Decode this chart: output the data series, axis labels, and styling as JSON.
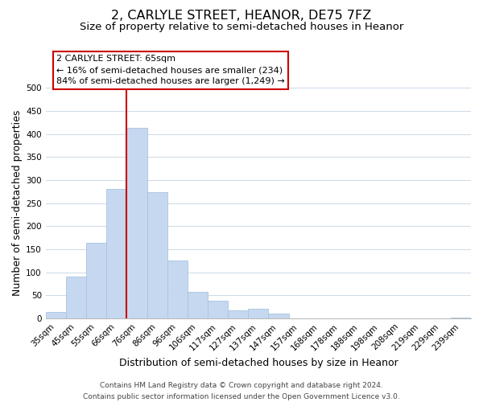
{
  "title": "2, CARLYLE STREET, HEANOR, DE75 7FZ",
  "subtitle": "Size of property relative to semi-detached houses in Heanor",
  "xlabel": "Distribution of semi-detached houses by size in Heanor",
  "ylabel": "Number of semi-detached properties",
  "bar_labels": [
    "35sqm",
    "45sqm",
    "55sqm",
    "66sqm",
    "76sqm",
    "86sqm",
    "96sqm",
    "106sqm",
    "117sqm",
    "127sqm",
    "137sqm",
    "147sqm",
    "157sqm",
    "168sqm",
    "178sqm",
    "188sqm",
    "198sqm",
    "208sqm",
    "219sqm",
    "229sqm",
    "239sqm"
  ],
  "bar_values": [
    13,
    90,
    163,
    280,
    413,
    273,
    126,
    57,
    38,
    18,
    20,
    11,
    0,
    0,
    0,
    0,
    0,
    0,
    0,
    0,
    2
  ],
  "bar_color": "#c5d8f0",
  "bar_edge_color": "#a8c4e0",
  "vline_x": 3.5,
  "vline_color": "#cc0000",
  "annotation_title": "2 CARLYLE STREET: 65sqm",
  "annotation_line1": "← 16% of semi-detached houses are smaller (234)",
  "annotation_line2": "84% of semi-detached houses are larger (1,249) →",
  "annotation_box_color": "#ffffff",
  "annotation_box_edge_color": "#cc0000",
  "ylim": [
    0,
    500
  ],
  "yticks": [
    0,
    50,
    100,
    150,
    200,
    250,
    300,
    350,
    400,
    450,
    500
  ],
  "footer_line1": "Contains HM Land Registry data © Crown copyright and database right 2024.",
  "footer_line2": "Contains public sector information licensed under the Open Government Licence v3.0.",
  "background_color": "#ffffff",
  "grid_color": "#cdd9e8",
  "title_fontsize": 11.5,
  "subtitle_fontsize": 9.5,
  "axis_label_fontsize": 9,
  "tick_fontsize": 7.5,
  "footer_fontsize": 6.5,
  "ann_fontsize": 8.0
}
